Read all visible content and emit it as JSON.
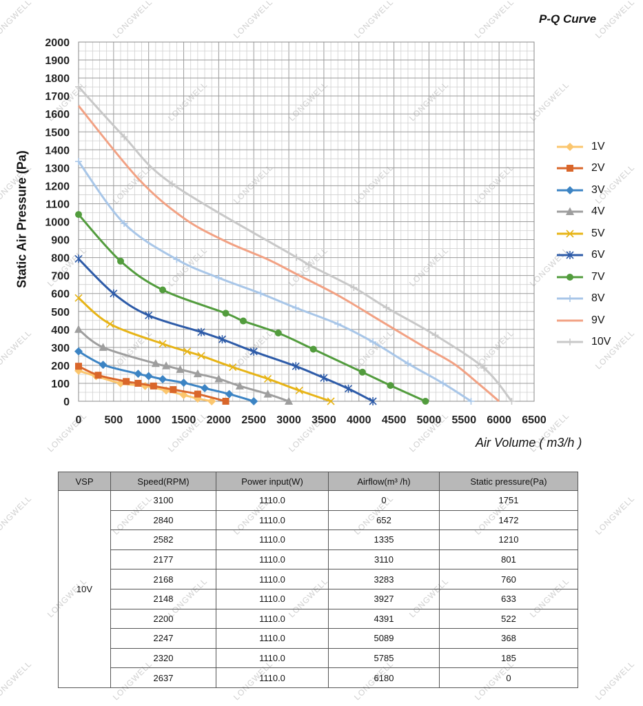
{
  "chart_data": {
    "type": "line",
    "title": "P-Q Curve",
    "xlabel": "Air Volume ( m3/h )",
    "ylabel": "Static Air Pressure  (Pa)",
    "xlim": [
      0,
      6500
    ],
    "ylim": [
      0,
      2000
    ],
    "xticks": [
      "0",
      "500",
      "1000",
      "1500",
      "2000",
      "2500",
      "3000",
      "3500",
      "4000",
      "4500",
      "5000",
      "5500",
      "6000",
      "6500"
    ],
    "yticks": [
      "0",
      "100",
      "200",
      "300",
      "400",
      "500",
      "600",
      "700",
      "800",
      "900",
      "1000",
      "1100",
      "1200",
      "1300",
      "1400",
      "1500",
      "1600",
      "1700",
      "1800",
      "1900",
      "2000"
    ],
    "grid": true,
    "legend_position": "right",
    "series": [
      {
        "name": "1V",
        "color": "#fbc66e",
        "marker": "diamond",
        "points": [
          [
            0,
            170
          ],
          [
            250,
            140
          ],
          [
            600,
            100
          ],
          [
            950,
            85
          ],
          [
            1250,
            60
          ],
          [
            1500,
            35
          ],
          [
            1700,
            15
          ],
          [
            1900,
            0
          ]
        ]
      },
      {
        "name": "2V",
        "color": "#d9662a",
        "marker": "square",
        "points": [
          [
            0,
            195
          ],
          [
            280,
            145
          ],
          [
            680,
            110
          ],
          [
            850,
            100
          ],
          [
            1070,
            85
          ],
          [
            1350,
            65
          ],
          [
            1700,
            40
          ],
          [
            2100,
            0
          ]
        ]
      },
      {
        "name": "3V",
        "color": "#3c84c4",
        "marker": "diamond",
        "points": [
          [
            0,
            278
          ],
          [
            350,
            203
          ],
          [
            850,
            153
          ],
          [
            1000,
            140
          ],
          [
            1200,
            123
          ],
          [
            1500,
            103
          ],
          [
            1800,
            73
          ],
          [
            2150,
            40
          ],
          [
            2500,
            0
          ]
        ]
      },
      {
        "name": "4V",
        "color": "#9e9e9e",
        "marker": "triangle",
        "points": [
          [
            0,
            400
          ],
          [
            350,
            300
          ],
          [
            1100,
            210
          ],
          [
            1250,
            197
          ],
          [
            1450,
            177
          ],
          [
            1700,
            153
          ],
          [
            2000,
            125
          ],
          [
            2300,
            85
          ],
          [
            2700,
            40
          ],
          [
            3000,
            0
          ]
        ]
      },
      {
        "name": "5V",
        "color": "#e7b416",
        "marker": "x",
        "points": [
          [
            0,
            575
          ],
          [
            450,
            430
          ],
          [
            1200,
            320
          ],
          [
            1550,
            277
          ],
          [
            1750,
            253
          ],
          [
            2200,
            190
          ],
          [
            2700,
            125
          ],
          [
            3150,
            60
          ],
          [
            3600,
            0
          ]
        ]
      },
      {
        "name": "6V",
        "color": "#2d5ba8",
        "marker": "star",
        "points": [
          [
            0,
            793
          ],
          [
            500,
            600
          ],
          [
            1000,
            478
          ],
          [
            1750,
            385
          ],
          [
            2050,
            345
          ],
          [
            2500,
            277
          ],
          [
            3100,
            195
          ],
          [
            3500,
            130
          ],
          [
            3850,
            70
          ],
          [
            4200,
            0
          ]
        ]
      },
      {
        "name": "7V",
        "color": "#529c3d",
        "marker": "circle",
        "points": [
          [
            0,
            1040
          ],
          [
            600,
            780
          ],
          [
            1200,
            620
          ],
          [
            2100,
            490
          ],
          [
            2350,
            447
          ],
          [
            2850,
            380
          ],
          [
            3350,
            290
          ],
          [
            4050,
            162
          ],
          [
            4450,
            88
          ],
          [
            4950,
            0
          ]
        ]
      },
      {
        "name": "8V",
        "color": "#a8c6e8",
        "marker": "plus",
        "points": [
          [
            0,
            1335
          ],
          [
            650,
            990
          ],
          [
            1400,
            790
          ],
          [
            2000,
            687
          ],
          [
            2600,
            600
          ],
          [
            3100,
            520
          ],
          [
            3700,
            430
          ],
          [
            4200,
            330
          ],
          [
            4700,
            210
          ],
          [
            5200,
            100
          ],
          [
            5600,
            0
          ]
        ]
      },
      {
        "name": "9V",
        "color": "#f2a183",
        "marker": "none",
        "points": [
          [
            0,
            1645
          ],
          [
            850,
            1240
          ],
          [
            1500,
            1020
          ],
          [
            2100,
            890
          ],
          [
            2700,
            790
          ],
          [
            3100,
            710
          ],
          [
            3700,
            590
          ],
          [
            4300,
            450
          ],
          [
            4900,
            310
          ],
          [
            5350,
            210
          ],
          [
            5700,
            100
          ],
          [
            6000,
            0
          ]
        ]
      },
      {
        "name": "10V",
        "color": "#c8c8c8",
        "marker": "plus",
        "points": [
          [
            0,
            1751
          ],
          [
            652,
            1472
          ],
          [
            1335,
            1210
          ],
          [
            3110,
            801
          ],
          [
            3283,
            760
          ],
          [
            3927,
            633
          ],
          [
            4391,
            522
          ],
          [
            5089,
            368
          ],
          [
            5785,
            185
          ],
          [
            6180,
            0
          ]
        ]
      }
    ]
  },
  "table": {
    "headers": [
      "VSP",
      "Speed(RPM)",
      "Power input(W)",
      "Airflow(m³ /h)",
      "Static pressure(Pa)"
    ],
    "vsp": "10V",
    "rows": [
      [
        "3100",
        "1110.0",
        "0",
        "1751"
      ],
      [
        "2840",
        "1110.0",
        "652",
        "1472"
      ],
      [
        "2582",
        "1110.0",
        "1335",
        "1210"
      ],
      [
        "2177",
        "1110.0",
        "3110",
        "801"
      ],
      [
        "2168",
        "1110.0",
        "3283",
        "760"
      ],
      [
        "2148",
        "1110.0",
        "3927",
        "633"
      ],
      [
        "2200",
        "1110.0",
        "4391",
        "522"
      ],
      [
        "2247",
        "1110.0",
        "5089",
        "368"
      ],
      [
        "2320",
        "1110.0",
        "5785",
        "185"
      ],
      [
        "2637",
        "1110.0",
        "6180",
        "0"
      ]
    ]
  },
  "watermark": "LONGWELL"
}
